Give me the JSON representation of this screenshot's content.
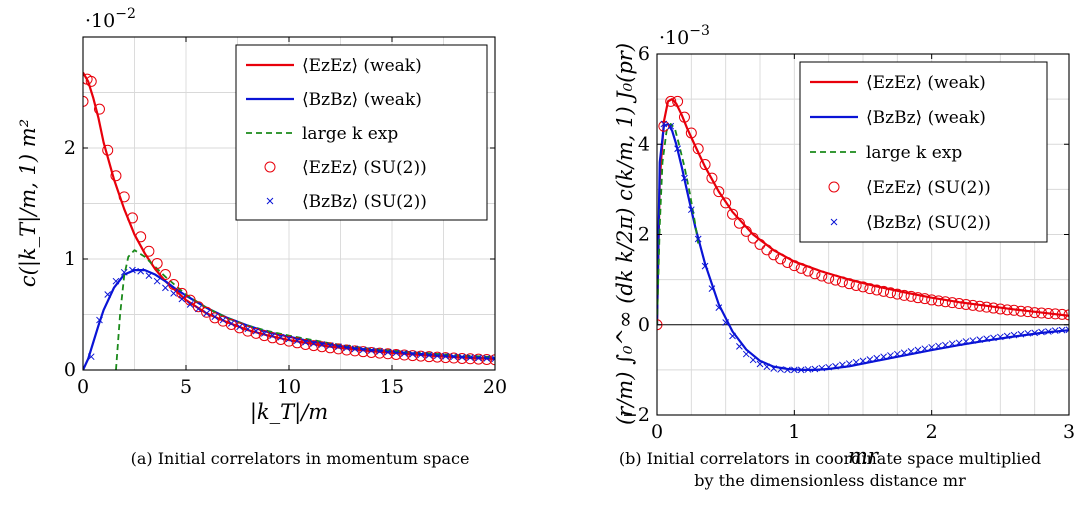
{
  "chart_data": [
    {
      "type": "line",
      "panel": "a",
      "caption": "(a) Initial correlators in momentum space",
      "xlabel": "|k_T|/m",
      "ylabel": "c(|k_T|/m, 1) m²",
      "yscale_label": "·10⁻²",
      "xlim": [
        0,
        20
      ],
      "ylim": [
        0,
        3
      ],
      "xticks": [
        "0",
        "5",
        "10",
        "15",
        "20"
      ],
      "yticks": [
        "0",
        "1",
        "2"
      ],
      "grid": true,
      "legend_position": "top-right",
      "series": [
        {
          "name": "⟨EzEz⟩ (weak)",
          "kind": "line",
          "color": "#e8000b",
          "x": [
            0,
            0.25,
            0.5,
            0.75,
            1,
            1.5,
            2,
            2.5,
            3,
            3.5,
            4,
            5,
            6,
            7,
            8,
            9,
            10,
            11,
            12,
            13,
            14,
            15,
            16,
            17,
            18,
            19,
            20
          ],
          "y": [
            2.68,
            2.6,
            2.45,
            2.27,
            2.05,
            1.72,
            1.45,
            1.22,
            1.05,
            0.91,
            0.8,
            0.63,
            0.51,
            0.43,
            0.36,
            0.31,
            0.27,
            0.24,
            0.21,
            0.19,
            0.17,
            0.155,
            0.14,
            0.128,
            0.117,
            0.107,
            0.1
          ]
        },
        {
          "name": "⟨BzBz⟩ (weak)",
          "kind": "line",
          "color": "#0a14d6",
          "x": [
            0,
            0.25,
            0.5,
            0.75,
            1,
            1.5,
            2,
            2.5,
            3,
            3.5,
            4,
            4.5,
            5,
            6,
            7,
            8,
            9,
            10,
            11,
            12,
            13,
            14,
            15,
            16,
            17,
            18,
            19,
            20
          ],
          "y": [
            0.0,
            0.1,
            0.25,
            0.4,
            0.54,
            0.74,
            0.86,
            0.9,
            0.9,
            0.86,
            0.8,
            0.73,
            0.67,
            0.56,
            0.47,
            0.4,
            0.34,
            0.3,
            0.26,
            0.23,
            0.2,
            0.18,
            0.165,
            0.15,
            0.135,
            0.123,
            0.113,
            0.105
          ]
        },
        {
          "name": "large k exp",
          "kind": "dashed",
          "color": "#1a8a1a",
          "x": [
            1.6,
            1.8,
            2.0,
            2.2,
            2.5,
            3,
            3.5,
            4,
            5,
            6,
            7,
            8,
            9,
            10,
            12,
            14,
            16,
            18,
            20
          ],
          "y": [
            0.0,
            0.5,
            0.85,
            1.02,
            1.08,
            1.02,
            0.93,
            0.84,
            0.68,
            0.56,
            0.47,
            0.4,
            0.35,
            0.31,
            0.24,
            0.19,
            0.16,
            0.135,
            0.115
          ]
        },
        {
          "name": "⟨EzEz⟩ (SU(2))",
          "kind": "circle",
          "color": "#e8000b",
          "x": [
            0,
            0.2,
            0.4,
            0.8,
            1.2,
            1.6,
            2,
            2.4,
            2.8,
            3.2,
            3.6,
            4,
            4.4,
            4.8,
            5.2,
            5.6,
            6,
            6.4,
            6.8,
            7.2,
            7.6,
            8,
            8.4,
            8.8,
            9.2,
            9.6,
            10,
            10.4,
            10.8,
            11.2,
            11.6,
            12,
            12.4,
            12.8,
            13.2,
            13.6,
            14,
            14.4,
            14.8,
            15.2,
            15.6,
            16,
            16.4,
            16.8,
            17.2,
            17.6,
            18,
            18.4,
            18.8,
            19.2,
            19.6,
            20
          ],
          "y": [
            2.42,
            2.62,
            2.6,
            2.35,
            1.98,
            1.75,
            1.56,
            1.37,
            1.2,
            1.07,
            0.96,
            0.86,
            0.77,
            0.69,
            0.63,
            0.57,
            0.52,
            0.47,
            0.44,
            0.41,
            0.38,
            0.35,
            0.33,
            0.31,
            0.29,
            0.275,
            0.26,
            0.245,
            0.23,
            0.22,
            0.21,
            0.2,
            0.19,
            0.18,
            0.172,
            0.165,
            0.158,
            0.152,
            0.146,
            0.14,
            0.135,
            0.13,
            0.125,
            0.12,
            0.116,
            0.112,
            0.108,
            0.104,
            0.101,
            0.098,
            0.095,
            0.092
          ]
        },
        {
          "name": "⟨BzBz⟩ (SU(2))",
          "kind": "cross",
          "color": "#0a14d6",
          "x": [
            0.4,
            0.8,
            1.2,
            1.6,
            2,
            2.4,
            2.8,
            3.2,
            3.6,
            4,
            4.4,
            4.8,
            5.2,
            5.6,
            6,
            6.4,
            6.8,
            7.2,
            7.6,
            8,
            8.4,
            8.8,
            9.2,
            9.6,
            10,
            10.4,
            10.8,
            11.2,
            11.6,
            12,
            12.4,
            12.8,
            13.2,
            13.6,
            14,
            14.4,
            14.8,
            15.2,
            15.6,
            16,
            16.4,
            16.8,
            17.2,
            17.6,
            18,
            18.4,
            18.8,
            19.2,
            19.6,
            20
          ],
          "y": [
            0.12,
            0.45,
            0.68,
            0.8,
            0.88,
            0.9,
            0.89,
            0.85,
            0.8,
            0.74,
            0.69,
            0.64,
            0.59,
            0.55,
            0.51,
            0.48,
            0.45,
            0.42,
            0.39,
            0.37,
            0.35,
            0.33,
            0.31,
            0.295,
            0.28,
            0.265,
            0.25,
            0.24,
            0.23,
            0.22,
            0.21,
            0.2,
            0.19,
            0.182,
            0.175,
            0.168,
            0.161,
            0.155,
            0.149,
            0.143,
            0.138,
            0.133,
            0.128,
            0.124,
            0.12,
            0.116,
            0.112,
            0.108,
            0.105,
            0.102
          ]
        }
      ]
    },
    {
      "type": "line",
      "panel": "b",
      "caption": "(b) Initial correlators in coordinate space multiplied",
      "caption_line2": "by the dimensionless distance mr",
      "xlabel": "mr",
      "ylabel": "(r/m) ∫₀^∞ (dk k/2π) c(k/m, 1) J₀(pr)",
      "yscale_label": "·10⁻³",
      "xlim": [
        0,
        3
      ],
      "ylim": [
        -2,
        6
      ],
      "xticks": [
        "0",
        "1",
        "2",
        "3"
      ],
      "yticks": [
        "−2",
        "0",
        "2",
        "4",
        "6"
      ],
      "grid": true,
      "zero_line": true,
      "legend_position": "top-right",
      "series": [
        {
          "name": "⟨EzEz⟩ (weak)",
          "kind": "line",
          "color": "#e8000b",
          "x": [
            0,
            0.02,
            0.05,
            0.08,
            0.11,
            0.14,
            0.18,
            0.22,
            0.28,
            0.35,
            0.45,
            0.55,
            0.7,
            0.85,
            1.0,
            1.2,
            1.4,
            1.6,
            1.8,
            2.0,
            2.2,
            2.4,
            2.6,
            2.8,
            3.0
          ],
          "y": [
            0,
            3.2,
            4.5,
            4.95,
            5.0,
            4.9,
            4.65,
            4.35,
            3.95,
            3.5,
            2.95,
            2.5,
            2.0,
            1.65,
            1.4,
            1.18,
            1.0,
            0.85,
            0.72,
            0.6,
            0.5,
            0.42,
            0.34,
            0.27,
            0.2
          ]
        },
        {
          "name": "⟨BzBz⟩ (weak)",
          "kind": "line",
          "color": "#0a14d6",
          "x": [
            0,
            0.02,
            0.05,
            0.08,
            0.11,
            0.14,
            0.18,
            0.22,
            0.28,
            0.35,
            0.45,
            0.55,
            0.65,
            0.75,
            0.85,
            0.95,
            1.05,
            1.15,
            1.25,
            1.4,
            1.6,
            1.8,
            2.0,
            2.2,
            2.4,
            2.6,
            2.8,
            3.0
          ],
          "y": [
            0,
            3.6,
            4.4,
            4.45,
            4.3,
            4.0,
            3.5,
            2.95,
            2.15,
            1.35,
            0.45,
            -0.15,
            -0.55,
            -0.8,
            -0.93,
            -0.98,
            -1.0,
            -1.0,
            -0.98,
            -0.92,
            -0.8,
            -0.68,
            -0.56,
            -0.45,
            -0.35,
            -0.26,
            -0.18,
            -0.12
          ]
        },
        {
          "name": "large k exp",
          "kind": "dashed",
          "color": "#1a8a1a",
          "x": [
            0,
            0.02,
            0.04,
            0.07,
            0.1,
            0.13,
            0.16,
            0.2,
            0.24,
            0.28,
            0.3
          ],
          "y": [
            0,
            2.2,
            3.6,
            4.3,
            4.45,
            4.35,
            4.0,
            3.5,
            2.9,
            2.2,
            1.8
          ]
        },
        {
          "name": "⟨EzEz⟩ (SU(2))",
          "kind": "circle",
          "color": "#e8000b",
          "x": [
            0,
            0.05,
            0.1,
            0.15,
            0.2,
            0.25,
            0.3,
            0.35,
            0.4,
            0.45,
            0.5,
            0.55,
            0.6,
            0.65,
            0.7,
            0.75,
            0.8,
            0.85,
            0.9,
            0.95,
            1.0,
            1.05,
            1.1,
            1.15,
            1.2,
            1.25,
            1.3,
            1.35,
            1.4,
            1.45,
            1.5,
            1.55,
            1.6,
            1.65,
            1.7,
            1.75,
            1.8,
            1.85,
            1.9,
            1.95,
            2.0,
            2.05,
            2.1,
            2.15,
            2.2,
            2.25,
            2.3,
            2.35,
            2.4,
            2.45,
            2.5,
            2.55,
            2.6,
            2.65,
            2.7,
            2.75,
            2.8,
            2.85,
            2.9,
            2.95,
            3.0
          ],
          "y": [
            0,
            4.4,
            4.95,
            4.95,
            4.6,
            4.25,
            3.9,
            3.55,
            3.25,
            2.95,
            2.7,
            2.45,
            2.25,
            2.07,
            1.92,
            1.78,
            1.66,
            1.55,
            1.46,
            1.38,
            1.31,
            1.25,
            1.19,
            1.13,
            1.08,
            1.03,
            0.99,
            0.95,
            0.91,
            0.87,
            0.84,
            0.8,
            0.77,
            0.74,
            0.71,
            0.68,
            0.65,
            0.63,
            0.6,
            0.58,
            0.55,
            0.53,
            0.51,
            0.49,
            0.47,
            0.45,
            0.43,
            0.41,
            0.39,
            0.37,
            0.35,
            0.33,
            0.32,
            0.3,
            0.29,
            0.27,
            0.26,
            0.25,
            0.24,
            0.23,
            0.22
          ]
        },
        {
          "name": "⟨BzBz⟩ (SU(2))",
          "kind": "cross",
          "color": "#0a14d6",
          "x": [
            0.05,
            0.1,
            0.15,
            0.2,
            0.25,
            0.3,
            0.35,
            0.4,
            0.45,
            0.5,
            0.55,
            0.6,
            0.65,
            0.7,
            0.75,
            0.8,
            0.85,
            0.9,
            0.95,
            1.0,
            1.05,
            1.1,
            1.15,
            1.2,
            1.25,
            1.3,
            1.35,
            1.4,
            1.45,
            1.5,
            1.55,
            1.6,
            1.65,
            1.7,
            1.75,
            1.8,
            1.85,
            1.9,
            1.95,
            2.0,
            2.05,
            2.1,
            2.15,
            2.2,
            2.25,
            2.3,
            2.35,
            2.4,
            2.45,
            2.5,
            2.55,
            2.6,
            2.65,
            2.7,
            2.75,
            2.8,
            2.85,
            2.9,
            2.95,
            3.0
          ],
          "y": [
            4.45,
            4.4,
            3.9,
            3.25,
            2.55,
            1.9,
            1.3,
            0.8,
            0.38,
            0.05,
            -0.25,
            -0.48,
            -0.65,
            -0.78,
            -0.87,
            -0.93,
            -0.97,
            -0.99,
            -1.0,
            -1.0,
            -1.0,
            -0.99,
            -0.98,
            -0.96,
            -0.94,
            -0.92,
            -0.89,
            -0.86,
            -0.83,
            -0.8,
            -0.77,
            -0.74,
            -0.71,
            -0.68,
            -0.65,
            -0.62,
            -0.59,
            -0.56,
            -0.53,
            -0.5,
            -0.47,
            -0.45,
            -0.42,
            -0.4,
            -0.37,
            -0.35,
            -0.33,
            -0.31,
            -0.29,
            -0.27,
            -0.25,
            -0.23,
            -0.21,
            -0.19,
            -0.18,
            -0.16,
            -0.15,
            -0.13,
            -0.12,
            -0.11
          ]
        }
      ]
    }
  ]
}
